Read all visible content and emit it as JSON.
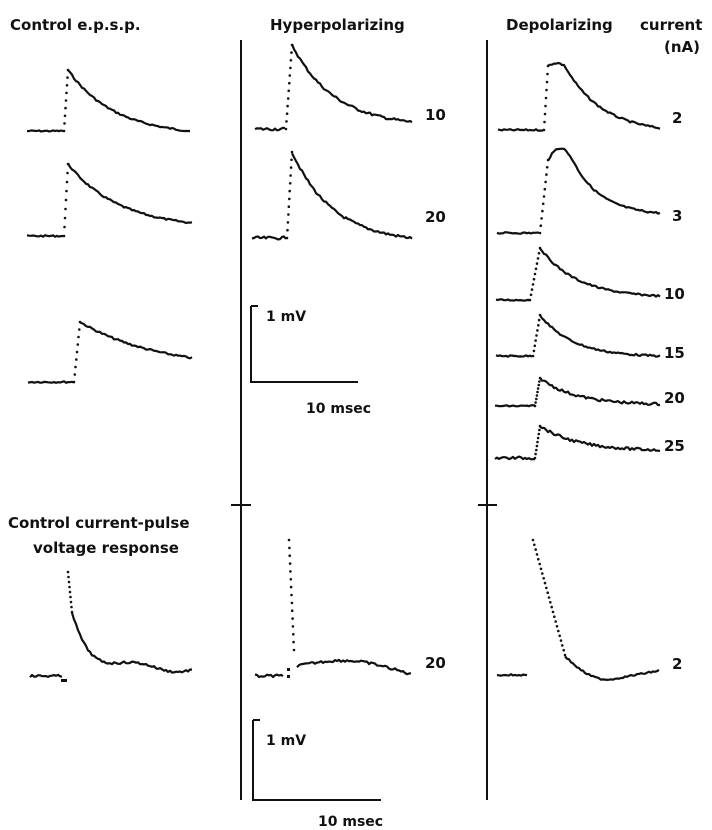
{
  "headers": {
    "control": "Control e.p.s.p.",
    "hyper": "Hyperpolarizing",
    "depol": "Depolarizing",
    "current": "current",
    "unit": "(nA)"
  },
  "control_pulse_label": [
    "Control current-pulse",
    "voltage response"
  ],
  "scale_top": {
    "voltage": "1 mV",
    "time": "10 msec"
  },
  "scale_bottom": {
    "voltage": "1  mV",
    "time": "10 msec"
  },
  "chart_data": {
    "type": "line",
    "title": "",
    "xlabel": "",
    "ylabel": "",
    "columns": [
      {
        "name": "Control e.p.s.p.",
        "traces": [
          {
            "current": ""
          },
          {
            "current": ""
          },
          {
            "current": ""
          }
        ]
      },
      {
        "name": "Hyperpolarizing",
        "traces": [
          {
            "current": "10"
          },
          {
            "current": "20"
          }
        ]
      },
      {
        "name": "Depolarizing current (nA)",
        "traces": [
          {
            "current": "2"
          },
          {
            "current": "3"
          },
          {
            "current": "10"
          },
          {
            "current": "15"
          },
          {
            "current": "20"
          },
          {
            "current": "25"
          }
        ]
      }
    ],
    "current_pulse_responses": [
      {
        "column": "Control",
        "current": ""
      },
      {
        "column": "Hyperpolarizing",
        "current": "20"
      },
      {
        "column": "Depolarizing",
        "current": "2"
      }
    ]
  }
}
